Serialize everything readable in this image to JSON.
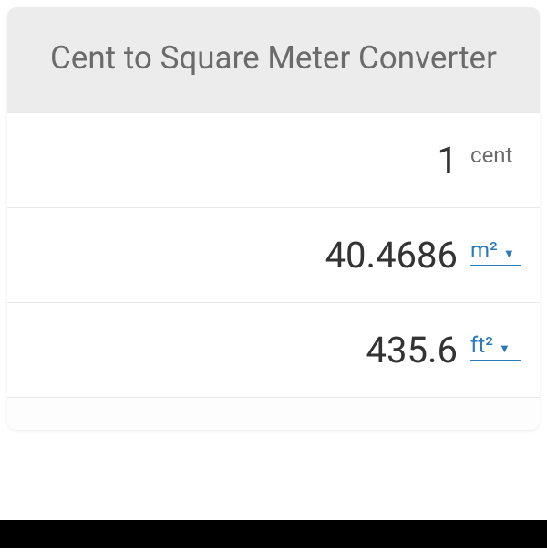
{
  "header": {
    "title": "Cent to Square Meter Converter"
  },
  "rows": [
    {
      "value": "1",
      "unit": "cent",
      "interactive_unit": false
    },
    {
      "value": "40.4686",
      "unit": "m²",
      "interactive_unit": true
    },
    {
      "value": "435.6",
      "unit": "ft²",
      "interactive_unit": true
    }
  ],
  "colors": {
    "header_bg": "#ececec",
    "title_color": "#6b6b6b",
    "card_bg": "#f9f9f9",
    "row_bg": "#ffffff",
    "border": "#e8e8e8",
    "value_color": "#333333",
    "unit_plain_color": "#6b6b6b",
    "unit_link_color": "#2b7bb9",
    "bottom_bar": "#000000"
  },
  "typography": {
    "title_fontsize": 35,
    "value_fontsize": 40,
    "unit_fontsize": 24
  }
}
